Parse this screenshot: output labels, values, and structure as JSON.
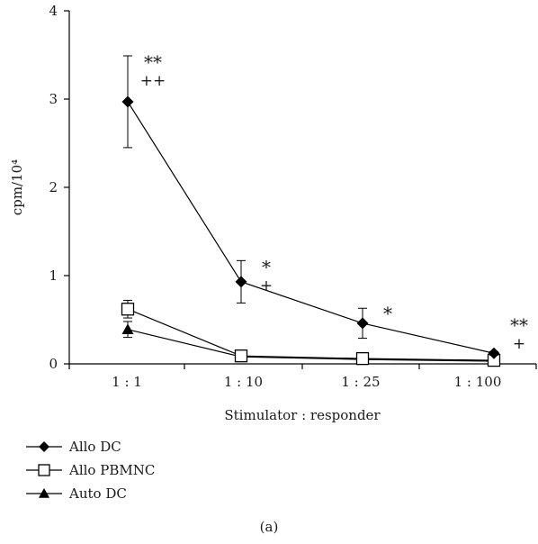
{
  "chart_data": {
    "type": "line",
    "categories": [
      "1 : 1",
      "1 : 10",
      "1 : 25",
      "1 : 100"
    ],
    "xlabel": "Stimulator : responder",
    "ylabel": "cpm/10⁴",
    "ylim": [
      0,
      4
    ],
    "yticks": [
      "0",
      "1",
      "2",
      "3",
      "4"
    ],
    "grid": false,
    "legend_position": "bottom-left",
    "series": [
      {
        "name": "Allo DC",
        "marker": "filled-diamond",
        "color": "#000000",
        "values": [
          2.97,
          0.93,
          0.46,
          0.12
        ],
        "errors": [
          0.52,
          0.24,
          0.17,
          0.02
        ]
      },
      {
        "name": "Allo PBMNC",
        "marker": "open-square",
        "color": "#000000",
        "values": [
          0.62,
          0.09,
          0.06,
          0.04
        ],
        "errors": [
          0.1,
          0.03,
          0.02,
          0.01
        ]
      },
      {
        "name": "Auto DC",
        "marker": "filled-triangle",
        "color": "#000000",
        "values": [
          0.39,
          0.08,
          0.05,
          0.03
        ],
        "errors": [
          0.09,
          0.02,
          0.02,
          0.01
        ]
      }
    ],
    "annotations": [
      {
        "category_index": 0,
        "lines": [
          "**",
          "++"
        ]
      },
      {
        "category_index": 1,
        "lines": [
          "*",
          "+"
        ]
      },
      {
        "category_index": 2,
        "lines": [
          "*"
        ]
      },
      {
        "category_index": 3,
        "lines": [
          "**",
          "+"
        ]
      }
    ],
    "panel_label": "(a)"
  }
}
